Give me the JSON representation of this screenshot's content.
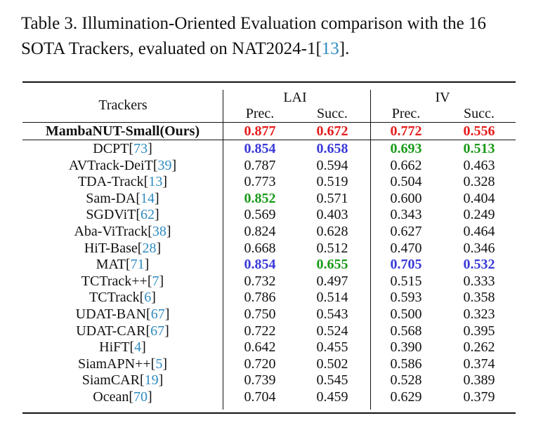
{
  "caption": {
    "line1": "Table 3. Illumination-Oriented Evaluation comparison with the 16",
    "line2_pre": "SOTA Trackers, evaluated on NAT2024-1[",
    "line2_ref": "13",
    "line2_post": "]."
  },
  "table": {
    "header": {
      "trackers": "Trackers",
      "group1": "LAI",
      "group2": "IV",
      "prec": "Prec.",
      "succ": "Succ."
    },
    "ours": {
      "name": "MambaNUT-Small(Ours)",
      "values": [
        "0.877",
        "0.672",
        "0.772",
        "0.556"
      ]
    },
    "rows": [
      {
        "name": "DCPT",
        "ref": "73",
        "values": [
          "0.854",
          "0.658",
          "0.693",
          "0.513"
        ],
        "styles": [
          "blue",
          "blue",
          "green",
          "green"
        ]
      },
      {
        "name": "AVTrack-DeiT",
        "ref": "39",
        "values": [
          "0.787",
          "0.594",
          "0.662",
          "0.463"
        ],
        "styles": [
          "",
          "",
          "",
          ""
        ]
      },
      {
        "name": "TDA-Track",
        "ref": "13",
        "values": [
          "0.773",
          "0.519",
          "0.504",
          "0.328"
        ],
        "styles": [
          "",
          "",
          "",
          ""
        ]
      },
      {
        "name": "Sam-DA",
        "ref": "14",
        "values": [
          "0.852",
          "0.571",
          "0.600",
          "0.404"
        ],
        "styles": [
          "green",
          "",
          "",
          ""
        ]
      },
      {
        "name": "SGDViT",
        "ref": "62",
        "values": [
          "0.569",
          "0.403",
          "0.343",
          "0.249"
        ],
        "styles": [
          "",
          "",
          "",
          ""
        ]
      },
      {
        "name": "Aba-ViTrack",
        "ref": "38",
        "values": [
          "0.824",
          "0.628",
          "0.627",
          "0.464"
        ],
        "styles": [
          "",
          "",
          "",
          ""
        ]
      },
      {
        "name": "HiT-Base",
        "ref": "28",
        "values": [
          "0.668",
          "0.512",
          "0.470",
          "0.346"
        ],
        "styles": [
          "",
          "",
          "",
          ""
        ]
      },
      {
        "name": "MAT",
        "ref": "71",
        "values": [
          "0.854",
          "0.655",
          "0.705",
          "0.532"
        ],
        "styles": [
          "blue",
          "green",
          "blue",
          "blue"
        ]
      },
      {
        "name": "TCTrack++",
        "ref": "7",
        "values": [
          "0.732",
          "0.497",
          "0.515",
          "0.333"
        ],
        "styles": [
          "",
          "",
          "",
          ""
        ]
      },
      {
        "name": "TCTrack",
        "ref": "6",
        "values": [
          "0.786",
          "0.514",
          "0.593",
          "0.358"
        ],
        "styles": [
          "",
          "",
          "",
          ""
        ]
      },
      {
        "name": "UDAT-BAN",
        "ref": "67",
        "values": [
          "0.750",
          "0.543",
          "0.500",
          "0.323"
        ],
        "styles": [
          "",
          "",
          "",
          ""
        ]
      },
      {
        "name": "UDAT-CAR",
        "ref": "67",
        "values": [
          "0.722",
          "0.524",
          "0.568",
          "0.395"
        ],
        "styles": [
          "",
          "",
          "",
          ""
        ]
      },
      {
        "name": "HiFT",
        "ref": "4",
        "values": [
          "0.642",
          "0.455",
          "0.390",
          "0.262"
        ],
        "styles": [
          "",
          "",
          "",
          ""
        ]
      },
      {
        "name": "SiamAPN++",
        "ref": "5",
        "values": [
          "0.720",
          "0.502",
          "0.586",
          "0.374"
        ],
        "styles": [
          "",
          "",
          "",
          ""
        ]
      },
      {
        "name": "SiamCAR",
        "ref": "19",
        "values": [
          "0.739",
          "0.545",
          "0.528",
          "0.389"
        ],
        "styles": [
          "",
          "",
          "",
          ""
        ]
      },
      {
        "name": "Ocean",
        "ref": "70",
        "values": [
          "0.704",
          "0.459",
          "0.629",
          "0.379"
        ],
        "styles": [
          "",
          "",
          "",
          ""
        ]
      }
    ]
  },
  "colors": {
    "best": "#e51c1c",
    "second": "#3a3ad8",
    "third": "#1a9a1a",
    "reference": "#2e8bc0"
  }
}
